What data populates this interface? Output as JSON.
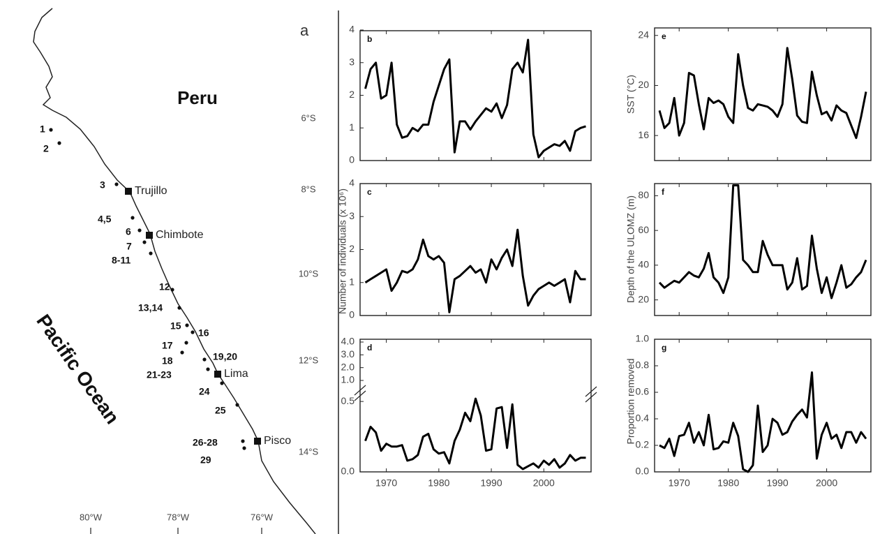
{
  "map": {
    "label": "a",
    "country": "Peru",
    "ocean": "Pacific Ocean",
    "cities": [
      "Trujillo",
      "Chimbote",
      "Lima",
      "Pisco"
    ],
    "sites": [
      "1",
      "2",
      "3",
      "4,5",
      "6",
      "7",
      "8-11",
      "12",
      "13,14",
      "15",
      "16",
      "17",
      "18",
      "19,20",
      "21-23",
      "24",
      "25",
      "26-28",
      "29"
    ],
    "latitudes": [
      "6°S",
      "8°S",
      "10°S",
      "12°S",
      "14°S"
    ],
    "longitudes": [
      "80°W",
      "78°W",
      "76°W"
    ]
  },
  "chart_data": [
    {
      "type": "line",
      "title": "b",
      "ylabel": "Number of individuals (x 10⁶)",
      "color": "#000000",
      "x": [
        1966,
        1967,
        1968,
        1969,
        1970,
        1971,
        1972,
        1973,
        1974,
        1975,
        1976,
        1977,
        1978,
        1979,
        1980,
        1981,
        1982,
        1983,
        1984,
        1985,
        1986,
        1987,
        1988,
        1989,
        1990,
        1991,
        1992,
        1993,
        1994,
        1995,
        1996,
        1997,
        1998,
        1999,
        2000,
        2001,
        2002,
        2003,
        2004,
        2005,
        2006,
        2007,
        2008
      ],
      "values": [
        2.2,
        2.8,
        3.0,
        1.9,
        2.0,
        3.0,
        1.1,
        0.7,
        0.75,
        1.0,
        0.9,
        1.1,
        1.1,
        1.8,
        2.3,
        2.8,
        3.1,
        0.25,
        1.2,
        1.2,
        0.95,
        1.2,
        1.4,
        1.6,
        1.5,
        1.75,
        1.3,
        1.7,
        2.8,
        3.0,
        2.7,
        3.7,
        0.8,
        0.1,
        0.3,
        0.4,
        0.5,
        0.45,
        0.6,
        0.3,
        0.9,
        1.0,
        1.05
      ],
      "xlim": [
        1965,
        2009
      ],
      "xticks": [
        1970,
        1980,
        1990,
        2000
      ],
      "ylim": [
        0,
        4
      ],
      "yticks": [
        0,
        1,
        2,
        3,
        4
      ]
    },
    {
      "type": "line",
      "title": "c",
      "color": "#000000",
      "x": [
        1966,
        1967,
        1968,
        1969,
        1970,
        1971,
        1972,
        1973,
        1974,
        1975,
        1976,
        1977,
        1978,
        1979,
        1980,
        1981,
        1982,
        1983,
        1984,
        1985,
        1986,
        1987,
        1988,
        1989,
        1990,
        1991,
        1992,
        1993,
        1994,
        1995,
        1996,
        1997,
        1998,
        1999,
        2000,
        2001,
        2002,
        2003,
        2004,
        2005,
        2006,
        2007,
        2008
      ],
      "values": [
        1.0,
        1.1,
        1.2,
        1.3,
        1.4,
        0.75,
        1.0,
        1.35,
        1.3,
        1.4,
        1.7,
        2.3,
        1.8,
        1.7,
        1.8,
        1.6,
        0.1,
        1.1,
        1.2,
        1.35,
        1.5,
        1.3,
        1.4,
        1.0,
        1.7,
        1.4,
        1.75,
        2.0,
        1.5,
        2.6,
        1.2,
        0.3,
        0.6,
        0.8,
        0.9,
        1.0,
        0.9,
        1.0,
        1.1,
        0.4,
        1.35,
        1.1,
        1.1
      ],
      "xlim": [
        1965,
        2009
      ],
      "xticks": [
        1970,
        1980,
        1990,
        2000
      ],
      "ylim": [
        0,
        4
      ],
      "yticks": [
        0,
        1,
        2,
        3,
        4
      ]
    },
    {
      "type": "line",
      "title": "d",
      "color": "#000000",
      "x": [
        1966,
        1967,
        1968,
        1969,
        1970,
        1971,
        1972,
        1973,
        1974,
        1975,
        1976,
        1977,
        1978,
        1979,
        1980,
        1981,
        1982,
        1983,
        1984,
        1985,
        1986,
        1987,
        1988,
        1989,
        1990,
        1991,
        1992,
        1993,
        1994,
        1995,
        1996,
        1997,
        1998,
        1999,
        2000,
        2001,
        2002,
        2003,
        2004,
        2005,
        2006,
        2007,
        2008
      ],
      "values": [
        0.22,
        0.32,
        0.28,
        0.15,
        0.2,
        0.18,
        0.18,
        0.19,
        0.08,
        0.09,
        0.12,
        0.25,
        0.27,
        0.16,
        0.13,
        0.14,
        0.06,
        0.22,
        0.3,
        0.42,
        0.36,
        0.52,
        0.4,
        0.15,
        0.16,
        0.45,
        0.46,
        0.17,
        0.48,
        0.05,
        0.02,
        0.04,
        0.06,
        0.03,
        0.08,
        0.05,
        0.09,
        0.03,
        0.06,
        0.12,
        0.08,
        0.1,
        0.1
      ],
      "xlim": [
        1965,
        2009
      ],
      "xticks": [
        1970,
        1980,
        1990,
        2000
      ],
      "ylim": [
        0,
        0.58
      ],
      "yticks": [
        {
          "value": 0,
          "label": "0.0"
        },
        {
          "value": 0.5,
          "label": "0.5"
        }
      ],
      "upper_ylim": [
        1,
        4
      ],
      "upper_yticks": [
        {
          "value": 1,
          "label": "1.0"
        },
        {
          "value": 2,
          "label": "2.0"
        },
        {
          "value": 3,
          "label": "3.0"
        },
        {
          "value": 4,
          "label": "4.0"
        }
      ]
    },
    {
      "type": "line",
      "title": "e",
      "ylabel": "SST (°C)",
      "color": "#000000",
      "x": [
        1966,
        1967,
        1968,
        1969,
        1970,
        1971,
        1972,
        1973,
        1974,
        1975,
        1976,
        1977,
        1978,
        1979,
        1980,
        1981,
        1982,
        1983,
        1984,
        1985,
        1986,
        1987,
        1988,
        1989,
        1990,
        1991,
        1992,
        1993,
        1994,
        1995,
        1996,
        1997,
        1998,
        1999,
        2000,
        2001,
        2002,
        2003,
        2004,
        2005,
        2006,
        2007,
        2008
      ],
      "values": [
        18,
        16.6,
        17,
        19,
        16,
        17,
        21,
        20.8,
        18.5,
        16.5,
        19,
        18.6,
        18.8,
        18.5,
        17.5,
        17,
        22.5,
        20,
        18.2,
        18,
        18.5,
        18.4,
        18.3,
        18,
        17.5,
        18.5,
        23,
        20.5,
        17.6,
        17.1,
        17,
        21.1,
        19.2,
        17.7,
        17.9,
        17.2,
        18.4,
        18,
        17.8,
        16.8,
        15.8,
        17.5,
        19.5
      ],
      "xlim": [
        1965,
        2009
      ],
      "xticks": [
        1970,
        1980,
        1990,
        2000
      ],
      "ylim": [
        14,
        24.6
      ],
      "yticks": [
        16,
        20,
        24
      ]
    },
    {
      "type": "line",
      "title": "f",
      "ylabel": "Depth of the ULOMZ (m)",
      "color": "#000000",
      "x": [
        1966,
        1967,
        1968,
        1969,
        1970,
        1971,
        1972,
        1973,
        1974,
        1975,
        1976,
        1977,
        1978,
        1979,
        1980,
        1981,
        1982,
        1983,
        1984,
        1985,
        1986,
        1987,
        1988,
        1989,
        1990,
        1991,
        1992,
        1993,
        1994,
        1995,
        1996,
        1997,
        1998,
        1999,
        2000,
        2001,
        2002,
        2003,
        2004,
        2005,
        2006,
        2007,
        2008
      ],
      "values": [
        30,
        27,
        29,
        31,
        30,
        33,
        36,
        34,
        33,
        38,
        47,
        33,
        30,
        24,
        33,
        86,
        86,
        43,
        40,
        36,
        36,
        54,
        46,
        40,
        40,
        40,
        26,
        30,
        44,
        26,
        28,
        57,
        38,
        24,
        33,
        21,
        30,
        40,
        27,
        29,
        33,
        36,
        43
      ],
      "xlim": [
        1965,
        2009
      ],
      "xticks": [
        1970,
        1980,
        1990,
        2000
      ],
      "ylim": [
        11,
        87
      ],
      "yticks": [
        20,
        40,
        60,
        80
      ]
    },
    {
      "type": "line",
      "title": "g",
      "ylabel": "Proportion removed",
      "color": "#000000",
      "x": [
        1966,
        1967,
        1968,
        1969,
        1970,
        1971,
        1972,
        1973,
        1974,
        1975,
        1976,
        1977,
        1978,
        1979,
        1980,
        1981,
        1982,
        1983,
        1984,
        1985,
        1986,
        1987,
        1988,
        1989,
        1990,
        1991,
        1992,
        1993,
        1994,
        1995,
        1996,
        1997,
        1998,
        1999,
        2000,
        2001,
        2002,
        2003,
        2004,
        2005,
        2006,
        2007,
        2008
      ],
      "values": [
        0.2,
        0.18,
        0.25,
        0.12,
        0.27,
        0.28,
        0.37,
        0.22,
        0.3,
        0.2,
        0.43,
        0.17,
        0.18,
        0.23,
        0.22,
        0.37,
        0.27,
        0.02,
        0.0,
        0.05,
        0.5,
        0.15,
        0.2,
        0.4,
        0.37,
        0.28,
        0.3,
        0.38,
        0.43,
        0.47,
        0.41,
        0.75,
        0.1,
        0.28,
        0.37,
        0.25,
        0.28,
        0.18,
        0.3,
        0.3,
        0.22,
        0.3,
        0.25
      ],
      "xlim": [
        1965,
        2009
      ],
      "xticks": [
        1970,
        1980,
        1990,
        2000
      ],
      "ylim": [
        0,
        1
      ],
      "yticks": [
        {
          "value": 0,
          "label": "0.0"
        },
        {
          "value": 0.2,
          "label": "0.2"
        },
        {
          "value": 0.4,
          "label": "0.4"
        },
        {
          "value": 0.6,
          "label": "0.6"
        },
        {
          "value": 0.8,
          "label": "0.8"
        },
        {
          "value": 1,
          "label": "1.0"
        }
      ]
    }
  ]
}
